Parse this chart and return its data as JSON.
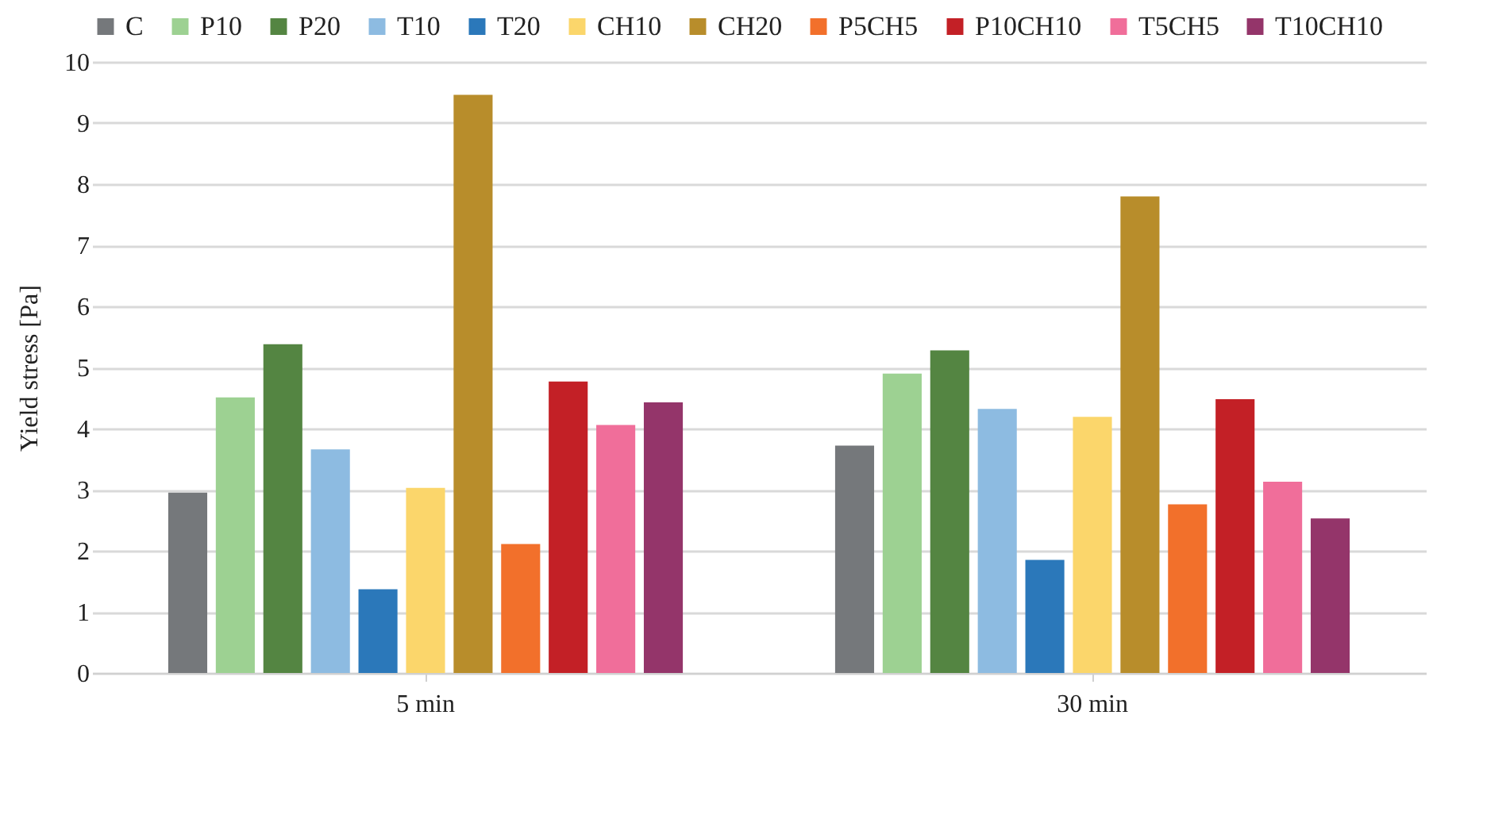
{
  "chart_data": {
    "type": "bar",
    "ylabel": "Yield stress [Pa]",
    "categories": [
      "5 min",
      "30 min"
    ],
    "series": [
      {
        "name": "C",
        "color": "#75787b",
        "values": [
          2.95,
          3.72
        ]
      },
      {
        "name": "P10",
        "color": "#9dd192",
        "values": [
          4.51,
          4.9
        ]
      },
      {
        "name": "P20",
        "color": "#548542",
        "values": [
          5.38,
          5.28
        ]
      },
      {
        "name": "T10",
        "color": "#8dbbe1",
        "values": [
          3.66,
          4.32
        ]
      },
      {
        "name": "T20",
        "color": "#2b78ba",
        "values": [
          1.37,
          1.85
        ]
      },
      {
        "name": "CH10",
        "color": "#fbd66b",
        "values": [
          3.03,
          4.19
        ]
      },
      {
        "name": "CH20",
        "color": "#b88d2b",
        "values": [
          9.46,
          7.8
        ]
      },
      {
        "name": "P5CH5",
        "color": "#f2702b",
        "values": [
          2.11,
          2.76
        ]
      },
      {
        "name": "P10CH10",
        "color": "#c32026",
        "values": [
          4.77,
          4.48
        ]
      },
      {
        "name": "T5CH5",
        "color": "#f06e9a",
        "values": [
          4.06,
          3.13
        ]
      },
      {
        "name": "T10CH10",
        "color": "#94356a",
        "values": [
          4.43,
          2.53
        ]
      }
    ],
    "ylim": [
      0,
      10
    ],
    "yticks": [
      0,
      1,
      2,
      3,
      4,
      5,
      6,
      7,
      8,
      9,
      10
    ],
    "grid": "y",
    "legend": "top"
  }
}
